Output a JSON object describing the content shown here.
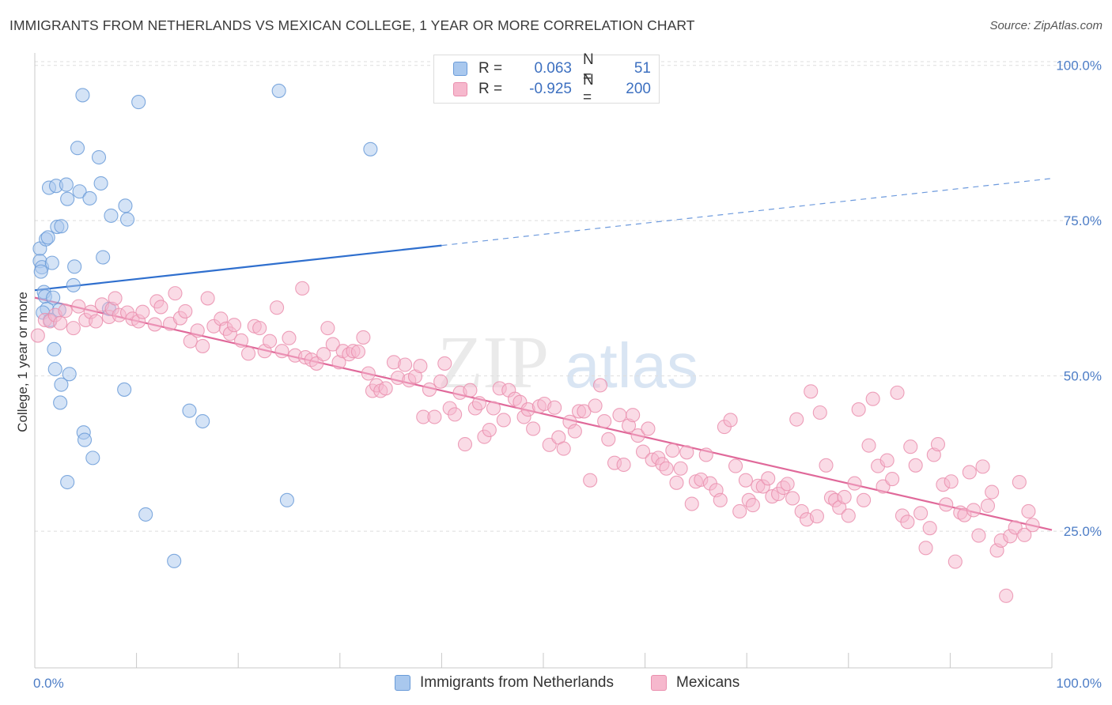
{
  "title": "IMMIGRANTS FROM NETHERLANDS VS MEXICAN COLLEGE, 1 YEAR OR MORE CORRELATION CHART",
  "source": "Source: ZipAtlas.com",
  "watermark": {
    "zip": "ZIP",
    "atlas": "atlas"
  },
  "colors": {
    "blue_fill": "#a9c8ee",
    "blue_stroke": "#6a9bd8",
    "blue_line": "#2f6fce",
    "pink_fill": "#f6b8cd",
    "pink_stroke": "#ea8fae",
    "pink_line": "#e0699a",
    "tick_text": "#4d7dc6",
    "grid": "#dedede"
  },
  "legend": {
    "r_label": "R =",
    "n_label": "N =",
    "rows": [
      {
        "r": "0.063",
        "n": "51",
        "color": "blue"
      },
      {
        "r": "-0.925",
        "n": "200",
        "color": "pink"
      }
    ]
  },
  "bottom_legend": [
    "Immigrants from Netherlands",
    "Mexicans"
  ],
  "chart_data": {
    "type": "scatter",
    "ylabel": "College, 1 year or more",
    "x_tick_labels": [
      "0.0%",
      "100.0%"
    ],
    "y_tick_labels": [
      "100.0%",
      "75.0%",
      "50.0%",
      "25.0%"
    ],
    "xlim": [
      0,
      100
    ],
    "ylim": [
      3,
      102
    ],
    "grid": true,
    "series": [
      {
        "name": "Immigrants from Netherlands",
        "color": "blue",
        "points": [
          [
            0.5,
            70.5
          ],
          [
            0.5,
            68.5
          ],
          [
            0.7,
            67.5
          ],
          [
            0.6,
            66.8
          ],
          [
            0.9,
            63.5
          ],
          [
            1.0,
            62.8
          ],
          [
            1.2,
            60.8
          ],
          [
            0.8,
            60.2
          ],
          [
            1.5,
            59.0
          ],
          [
            1.8,
            62.6
          ],
          [
            1.7,
            68.2
          ],
          [
            1.1,
            72.0
          ],
          [
            1.3,
            72.3
          ],
          [
            2.2,
            74.0
          ],
          [
            2.6,
            74.1
          ],
          [
            1.4,
            80.3
          ],
          [
            2.1,
            80.6
          ],
          [
            3.1,
            80.8
          ],
          [
            4.4,
            79.7
          ],
          [
            3.2,
            78.5
          ],
          [
            5.4,
            78.6
          ],
          [
            6.5,
            81.0
          ],
          [
            4.2,
            86.7
          ],
          [
            6.3,
            85.2
          ],
          [
            4.7,
            95.2
          ],
          [
            10.2,
            94.1
          ],
          [
            24.0,
            95.9
          ],
          [
            33.0,
            86.5
          ],
          [
            7.5,
            75.8
          ],
          [
            8.9,
            77.4
          ],
          [
            9.1,
            75.2
          ],
          [
            6.7,
            69.1
          ],
          [
            3.9,
            67.6
          ],
          [
            3.8,
            64.6
          ],
          [
            7.3,
            60.8
          ],
          [
            2.4,
            60.6
          ],
          [
            1.9,
            54.3
          ],
          [
            2.0,
            51.1
          ],
          [
            3.4,
            50.3
          ],
          [
            2.6,
            48.6
          ],
          [
            2.5,
            45.7
          ],
          [
            8.8,
            47.8
          ],
          [
            15.2,
            44.4
          ],
          [
            16.5,
            42.7
          ],
          [
            4.8,
            40.9
          ],
          [
            4.9,
            39.7
          ],
          [
            5.7,
            36.8
          ],
          [
            3.2,
            32.9
          ],
          [
            10.9,
            27.7
          ],
          [
            13.7,
            20.2
          ],
          [
            24.8,
            30.0
          ]
        ]
      },
      {
        "name": "Mexicans",
        "color": "pink",
        "points": [
          [
            0.3,
            56.5
          ],
          [
            1.0,
            59.0
          ],
          [
            1.5,
            58.8
          ],
          [
            2.0,
            59.8
          ],
          [
            2.5,
            58.5
          ],
          [
            3.0,
            60.5
          ],
          [
            3.8,
            57.7
          ],
          [
            4.3,
            61.2
          ],
          [
            5.0,
            59.0
          ],
          [
            5.5,
            60.3
          ],
          [
            6.0,
            58.8
          ],
          [
            6.6,
            61.5
          ],
          [
            7.3,
            59.5
          ],
          [
            7.6,
            60.8
          ],
          [
            7.9,
            62.5
          ],
          [
            8.3,
            59.8
          ],
          [
            9.1,
            60.2
          ],
          [
            9.6,
            59.2
          ],
          [
            10.2,
            58.8
          ],
          [
            10.6,
            60.3
          ],
          [
            11.8,
            58.3
          ],
          [
            12.0,
            62.0
          ],
          [
            12.4,
            61.1
          ],
          [
            13.3,
            58.4
          ],
          [
            13.8,
            63.3
          ],
          [
            14.3,
            59.3
          ],
          [
            14.8,
            60.4
          ],
          [
            15.3,
            55.6
          ],
          [
            16.0,
            57.3
          ],
          [
            16.5,
            54.8
          ],
          [
            17.0,
            62.5
          ],
          [
            17.6,
            58.0
          ],
          [
            18.3,
            59.2
          ],
          [
            18.8,
            57.6
          ],
          [
            19.2,
            56.8
          ],
          [
            19.6,
            58.2
          ],
          [
            20.3,
            55.7
          ],
          [
            21.0,
            53.6
          ],
          [
            21.6,
            58.0
          ],
          [
            22.1,
            57.7
          ],
          [
            22.6,
            54.0
          ],
          [
            23.1,
            55.6
          ],
          [
            23.8,
            61.0
          ],
          [
            24.3,
            54.0
          ],
          [
            25.0,
            56.1
          ],
          [
            25.6,
            53.3
          ],
          [
            26.3,
            64.1
          ],
          [
            26.6,
            53.0
          ],
          [
            27.2,
            52.6
          ],
          [
            27.7,
            52.0
          ],
          [
            28.4,
            53.5
          ],
          [
            28.8,
            57.7
          ],
          [
            29.3,
            55.1
          ],
          [
            29.9,
            52.2
          ],
          [
            30.3,
            54.0
          ],
          [
            30.9,
            53.5
          ],
          [
            31.3,
            54.0
          ],
          [
            31.8,
            53.9
          ],
          [
            32.3,
            56.2
          ],
          [
            32.8,
            50.4
          ],
          [
            33.2,
            47.6
          ],
          [
            33.6,
            48.5
          ],
          [
            34.0,
            47.6
          ],
          [
            34.5,
            48.0
          ],
          [
            35.3,
            52.2
          ],
          [
            35.7,
            49.7
          ],
          [
            36.4,
            51.8
          ],
          [
            36.8,
            49.3
          ],
          [
            37.4,
            49.9
          ],
          [
            37.9,
            51.6
          ],
          [
            38.2,
            43.4
          ],
          [
            38.8,
            47.8
          ],
          [
            39.3,
            43.4
          ],
          [
            39.9,
            49.1
          ],
          [
            40.3,
            52.0
          ],
          [
            40.8,
            44.8
          ],
          [
            41.3,
            43.8
          ],
          [
            41.8,
            47.3
          ],
          [
            42.3,
            39.0
          ],
          [
            42.8,
            47.7
          ],
          [
            43.3,
            44.8
          ],
          [
            43.7,
            45.6
          ],
          [
            44.2,
            40.2
          ],
          [
            44.7,
            41.3
          ],
          [
            45.1,
            44.8
          ],
          [
            45.7,
            48.0
          ],
          [
            46.1,
            42.9
          ],
          [
            46.6,
            47.7
          ],
          [
            47.2,
            46.3
          ],
          [
            47.7,
            45.8
          ],
          [
            48.1,
            43.4
          ],
          [
            48.5,
            44.6
          ],
          [
            49.0,
            41.5
          ],
          [
            49.6,
            45.1
          ],
          [
            50.1,
            45.5
          ],
          [
            50.6,
            38.9
          ],
          [
            51.1,
            44.9
          ],
          [
            51.5,
            40.1
          ],
          [
            52.0,
            38.3
          ],
          [
            52.6,
            42.6
          ],
          [
            53.1,
            41.1
          ],
          [
            53.5,
            44.3
          ],
          [
            54.0,
            44.3
          ],
          [
            54.6,
            33.2
          ],
          [
            55.1,
            45.2
          ],
          [
            55.6,
            48.5
          ],
          [
            56.0,
            42.7
          ],
          [
            56.4,
            39.8
          ],
          [
            57.0,
            36.0
          ],
          [
            57.5,
            43.7
          ],
          [
            57.9,
            35.7
          ],
          [
            58.4,
            42.0
          ],
          [
            58.8,
            43.7
          ],
          [
            59.3,
            40.4
          ],
          [
            59.8,
            37.8
          ],
          [
            60.3,
            41.5
          ],
          [
            60.7,
            36.5
          ],
          [
            61.3,
            36.8
          ],
          [
            61.7,
            35.8
          ],
          [
            62.1,
            35.1
          ],
          [
            62.7,
            38.0
          ],
          [
            63.1,
            32.8
          ],
          [
            63.5,
            35.1
          ],
          [
            64.1,
            37.7
          ],
          [
            64.6,
            29.4
          ],
          [
            65.0,
            33.0
          ],
          [
            65.5,
            33.3
          ],
          [
            66.0,
            37.3
          ],
          [
            66.4,
            32.7
          ],
          [
            67.0,
            31.6
          ],
          [
            67.4,
            30.0
          ],
          [
            67.8,
            41.8
          ],
          [
            68.4,
            42.9
          ],
          [
            68.9,
            35.5
          ],
          [
            69.3,
            28.2
          ],
          [
            69.9,
            33.2
          ],
          [
            70.2,
            30.0
          ],
          [
            70.6,
            29.2
          ],
          [
            71.1,
            32.3
          ],
          [
            71.6,
            32.2
          ],
          [
            72.1,
            33.5
          ],
          [
            72.5,
            30.6
          ],
          [
            73.1,
            31.0
          ],
          [
            73.6,
            32.0
          ],
          [
            74.0,
            32.6
          ],
          [
            74.5,
            30.3
          ],
          [
            74.9,
            43.0
          ],
          [
            75.4,
            28.2
          ],
          [
            75.9,
            26.9
          ],
          [
            76.3,
            47.5
          ],
          [
            76.9,
            27.4
          ],
          [
            77.2,
            44.1
          ],
          [
            77.8,
            35.6
          ],
          [
            78.3,
            30.4
          ],
          [
            78.7,
            30.0
          ],
          [
            79.1,
            28.8
          ],
          [
            79.6,
            30.5
          ],
          [
            80.0,
            27.5
          ],
          [
            80.6,
            32.7
          ],
          [
            81.0,
            44.6
          ],
          [
            81.5,
            30.0
          ],
          [
            82.0,
            38.8
          ],
          [
            82.4,
            46.3
          ],
          [
            82.9,
            35.5
          ],
          [
            83.4,
            32.2
          ],
          [
            83.8,
            36.4
          ],
          [
            84.3,
            33.4
          ],
          [
            84.8,
            47.3
          ],
          [
            85.3,
            27.5
          ],
          [
            85.8,
            26.5
          ],
          [
            86.1,
            38.6
          ],
          [
            86.6,
            35.6
          ],
          [
            87.1,
            27.9
          ],
          [
            87.6,
            22.3
          ],
          [
            88.0,
            25.5
          ],
          [
            88.4,
            37.3
          ],
          [
            88.8,
            39.0
          ],
          [
            89.3,
            32.5
          ],
          [
            89.6,
            29.3
          ],
          [
            90.1,
            33.0
          ],
          [
            90.5,
            20.1
          ],
          [
            91.0,
            28.0
          ],
          [
            91.4,
            27.6
          ],
          [
            91.9,
            34.5
          ],
          [
            92.3,
            28.4
          ],
          [
            92.8,
            24.3
          ],
          [
            93.2,
            35.4
          ],
          [
            93.7,
            29.1
          ],
          [
            94.1,
            31.3
          ],
          [
            94.6,
            21.9
          ],
          [
            95.0,
            23.5
          ],
          [
            95.5,
            14.6
          ],
          [
            95.9,
            24.2
          ],
          [
            96.4,
            25.6
          ],
          [
            96.8,
            32.9
          ],
          [
            97.3,
            24.4
          ],
          [
            97.7,
            28.2
          ],
          [
            98.1,
            26.0
          ]
        ]
      }
    ],
    "trend_lines": [
      {
        "series": "Immigrants from Netherlands",
        "x0": 0,
        "y0": 63.8,
        "x_solid_end": 40,
        "y_solid_end": 71.0,
        "x1": 100,
        "y1": 81.8,
        "dashed_beyond_solid": true
      },
      {
        "series": "Mexicans",
        "x0": 0,
        "y0": 62.6,
        "x1": 100,
        "y1": 25.2,
        "dashed_beyond_solid": false
      }
    ]
  }
}
